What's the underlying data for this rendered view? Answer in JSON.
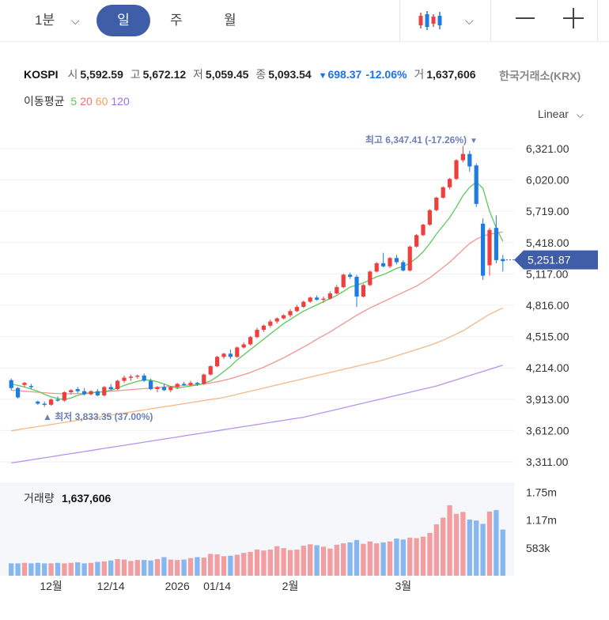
{
  "toolbar": {
    "timeframes": [
      "1분",
      "일",
      "주",
      "월"
    ],
    "selected": "일"
  },
  "header": {
    "symbol": "KOSPI",
    "open_label": "시",
    "open": "5,592.59",
    "high_label": "고",
    "high": "5,672.12",
    "low_label": "저",
    "low": "5,059.45",
    "close_label": "종",
    "close": "5,093.54",
    "change_arrow": "▼",
    "change": "698.37",
    "change_pct": "-12.06%",
    "volume_label": "거",
    "volume": "1,637,606",
    "exchange": "한국거래소(KRX)"
  },
  "moving_average": {
    "label": "이동평균",
    "periods": [
      "5",
      "20",
      "60",
      "120"
    ],
    "colors": [
      "#5cc85c",
      "#f07070",
      "#f0a060",
      "#a070e0"
    ]
  },
  "scale_mode": "Linear",
  "colors": {
    "up": "#ef3e3e",
    "down": "#1e7be0",
    "vol_up": "#f29da0",
    "vol_down": "#86b7f0",
    "accent": "#3f5ea7"
  },
  "chart_data": {
    "type": "candlestick",
    "y_ticks": [
      "6,321.00",
      "6,020.00",
      "5,719.00",
      "5,418.00",
      "5,117.00",
      "4,816.00",
      "4,515.00",
      "4,214.00",
      "3,913.00",
      "3,612.00",
      "3,311.00"
    ],
    "ylim": [
      3311,
      6321
    ],
    "x_ticks": [
      "12월",
      "12/14",
      "2026",
      "01/14",
      "2월",
      "3월"
    ],
    "current_price_label": "5,251.87",
    "current_price": 5251.87,
    "max_label": "최고 6,347.41 (-17.26%)",
    "min_label": "최저 3,833.35 (37.00%)",
    "candles": [
      [
        4096,
        4110,
        4000,
        4020
      ],
      [
        4020,
        4030,
        3920,
        3930
      ],
      [
        4050,
        4080,
        4030,
        4070
      ],
      [
        4040,
        4060,
        4010,
        4030
      ],
      [
        3890,
        3900,
        3860,
        3870
      ],
      [
        3870,
        3890,
        3840,
        3860
      ],
      [
        3860,
        3920,
        3850,
        3910
      ],
      [
        3910,
        3940,
        3890,
        3900
      ],
      [
        3900,
        3990,
        3890,
        3980
      ],
      [
        3980,
        4010,
        3960,
        4000
      ],
      [
        4010,
        4030,
        3970,
        3990
      ],
      [
        3990,
        4020,
        3950,
        3960
      ],
      [
        3960,
        4000,
        3950,
        3990
      ],
      [
        3990,
        4010,
        3940,
        3950
      ],
      [
        3950,
        4040,
        3940,
        4030
      ],
      [
        4030,
        4060,
        4000,
        4010
      ],
      [
        4010,
        4100,
        4000,
        4090
      ],
      [
        4090,
        4140,
        4070,
        4120
      ],
      [
        4120,
        4150,
        4090,
        4130
      ],
      [
        4130,
        4150,
        4110,
        4140
      ],
      [
        4140,
        4160,
        4080,
        4090
      ],
      [
        4090,
        4110,
        4000,
        4010
      ],
      [
        4010,
        4040,
        3980,
        4030
      ],
      [
        4030,
        4060,
        3990,
        4000
      ],
      [
        4000,
        4040,
        3980,
        4030
      ],
      [
        4030,
        4070,
        4010,
        4060
      ],
      [
        4060,
        4080,
        4040,
        4050
      ],
      [
        4050,
        4090,
        4040,
        4070
      ],
      [
        4070,
        4080,
        4040,
        4060
      ],
      [
        4060,
        4160,
        4050,
        4150
      ],
      [
        4150,
        4240,
        4140,
        4230
      ],
      [
        4230,
        4330,
        4220,
        4320
      ],
      [
        4320,
        4360,
        4300,
        4350
      ],
      [
        4350,
        4390,
        4300,
        4320
      ],
      [
        4320,
        4420,
        4310,
        4410
      ],
      [
        4410,
        4460,
        4400,
        4440
      ],
      [
        4440,
        4520,
        4430,
        4510
      ],
      [
        4510,
        4600,
        4500,
        4580
      ],
      [
        4580,
        4630,
        4560,
        4620
      ],
      [
        4620,
        4680,
        4600,
        4660
      ],
      [
        4660,
        4700,
        4640,
        4690
      ],
      [
        4690,
        4730,
        4680,
        4720
      ],
      [
        4720,
        4780,
        4700,
        4760
      ],
      [
        4760,
        4820,
        4750,
        4800
      ],
      [
        4800,
        4860,
        4790,
        4850
      ],
      [
        4850,
        4900,
        4840,
        4890
      ],
      [
        4890,
        4910,
        4860,
        4870
      ],
      [
        4870,
        4900,
        4840,
        4880
      ],
      [
        4880,
        4950,
        4870,
        4930
      ],
      [
        4930,
        5010,
        4920,
        4990
      ],
      [
        4990,
        5120,
        4980,
        5110
      ],
      [
        5110,
        5130,
        5070,
        5090
      ],
      [
        5090,
        5110,
        4800,
        4900
      ],
      [
        4900,
        5020,
        4890,
        5010
      ],
      [
        5010,
        5150,
        5000,
        5140
      ],
      [
        5140,
        5230,
        5130,
        5220
      ],
      [
        5220,
        5320,
        5180,
        5190
      ],
      [
        5190,
        5280,
        5170,
        5270
      ],
      [
        5270,
        5300,
        5210,
        5230
      ],
      [
        5230,
        5250,
        5140,
        5150
      ],
      [
        5150,
        5390,
        5140,
        5380
      ],
      [
        5380,
        5500,
        5370,
        5490
      ],
      [
        5490,
        5600,
        5480,
        5590
      ],
      [
        5590,
        5740,
        5580,
        5730
      ],
      [
        5730,
        5860,
        5720,
        5850
      ],
      [
        5850,
        5960,
        5840,
        5950
      ],
      [
        5950,
        6040,
        5930,
        6030
      ],
      [
        6030,
        6220,
        6020,
        6210
      ],
      [
        6210,
        6347,
        6190,
        6270
      ],
      [
        6270,
        6300,
        6100,
        6150
      ],
      [
        6160,
        6180,
        5760,
        5790
      ],
      [
        5600,
        5650,
        5060,
        5100
      ],
      [
        5200,
        5560,
        5100,
        5540
      ],
      [
        5560,
        5680,
        5220,
        5250
      ],
      [
        5260,
        5300,
        5140,
        5240
      ]
    ],
    "volume": {
      "label": "거래량",
      "value_label": "1,637,606",
      "y_ticks": [
        "1.75m",
        "1.17m",
        "583k"
      ],
      "values": [
        0.26,
        0.26,
        0.27,
        0.26,
        0.27,
        0.26,
        0.26,
        0.27,
        0.26,
        0.27,
        0.28,
        0.26,
        0.27,
        0.29,
        0.3,
        0.32,
        0.35,
        0.34,
        0.31,
        0.33,
        0.33,
        0.32,
        0.35,
        0.39,
        0.34,
        0.33,
        0.34,
        0.37,
        0.39,
        0.38,
        0.46,
        0.45,
        0.41,
        0.42,
        0.44,
        0.48,
        0.5,
        0.55,
        0.53,
        0.55,
        0.62,
        0.58,
        0.54,
        0.55,
        0.63,
        0.66,
        0.64,
        0.61,
        0.57,
        0.65,
        0.68,
        0.7,
        0.75,
        0.67,
        0.72,
        0.68,
        0.7,
        0.72,
        0.78,
        0.76,
        0.8,
        0.79,
        0.82,
        0.9,
        1.08,
        1.22,
        1.48,
        1.3,
        1.34,
        1.18,
        1.16,
        1.09,
        1.35,
        1.38,
        0.97
      ]
    },
    "ma5": [
      4060,
      4045,
      4030,
      4010,
      3990,
      3960,
      3935,
      3920,
      3910,
      3925,
      3950,
      3965,
      3975,
      3980,
      3985,
      4000,
      4020,
      4045,
      4065,
      4085,
      4100,
      4095,
      4080,
      4060,
      4035,
      4020,
      4030,
      4040,
      4050,
      4065,
      4090,
      4130,
      4180,
      4230,
      4290,
      4340,
      4390,
      4440,
      4490,
      4540,
      4590,
      4640,
      4680,
      4720,
      4760,
      4790,
      4820,
      4850,
      4880,
      4910,
      4950,
      4990,
      5010,
      5030,
      5060,
      5090,
      5110,
      5140,
      5170,
      5190,
      5220,
      5270,
      5330,
      5410,
      5500,
      5580,
      5660,
      5760,
      5870,
      5950,
      6000,
      5940,
      5720,
      5560,
      5430
    ],
    "ma20": [
      4000,
      3995,
      3990,
      3985,
      3980,
      3975,
      3970,
      3968,
      3965,
      3965,
      3968,
      3970,
      3975,
      3980,
      3985,
      3990,
      3995,
      4000,
      4005,
      4010,
      4015,
      4020,
      4025,
      4030,
      4035,
      4040,
      4045,
      4050,
      4055,
      4060,
      4070,
      4080,
      4095,
      4110,
      4130,
      4150,
      4170,
      4195,
      4220,
      4250,
      4280,
      4310,
      4345,
      4380,
      4415,
      4450,
      4490,
      4525,
      4560,
      4600,
      4640,
      4680,
      4720,
      4755,
      4790,
      4820,
      4850,
      4880,
      4910,
      4940,
      4970,
      5000,
      5040,
      5080,
      5130,
      5180,
      5230,
      5290,
      5350,
      5410,
      5450,
      5480,
      5500,
      5510,
      5520
    ],
    "ma60": [
      3610,
      3620,
      3630,
      3640,
      3650,
      3660,
      3670,
      3680,
      3690,
      3700,
      3710,
      3720,
      3730,
      3740,
      3750,
      3760,
      3770,
      3780,
      3790,
      3800,
      3810,
      3820,
      3830,
      3840,
      3850,
      3860,
      3870,
      3880,
      3890,
      3900,
      3910,
      3920,
      3930,
      3945,
      3960,
      3975,
      3990,
      4005,
      4020,
      4035,
      4050,
      4065,
      4080,
      4095,
      4110,
      4125,
      4140,
      4155,
      4170,
      4185,
      4200,
      4215,
      4230,
      4245,
      4260,
      4275,
      4290,
      4310,
      4330,
      4350,
      4370,
      4390,
      4410,
      4430,
      4455,
      4480,
      4510,
      4540,
      4570,
      4610,
      4650,
      4690,
      4730,
      4760,
      4790
    ],
    "ma120": [
      3300,
      3310,
      3320,
      3330,
      3340,
      3350,
      3360,
      3370,
      3380,
      3390,
      3400,
      3410,
      3420,
      3430,
      3440,
      3450,
      3460,
      3470,
      3480,
      3490,
      3500,
      3510,
      3520,
      3530,
      3540,
      3550,
      3560,
      3570,
      3580,
      3590,
      3600,
      3610,
      3620,
      3630,
      3640,
      3650,
      3660,
      3670,
      3680,
      3690,
      3700,
      3710,
      3720,
      3730,
      3740,
      3755,
      3770,
      3785,
      3800,
      3815,
      3830,
      3845,
      3860,
      3875,
      3890,
      3905,
      3920,
      3935,
      3950,
      3965,
      3980,
      3995,
      4010,
      4025,
      4040,
      4060,
      4080,
      4100,
      4120,
      4140,
      4160,
      4180,
      4200,
      4220,
      4240
    ]
  }
}
